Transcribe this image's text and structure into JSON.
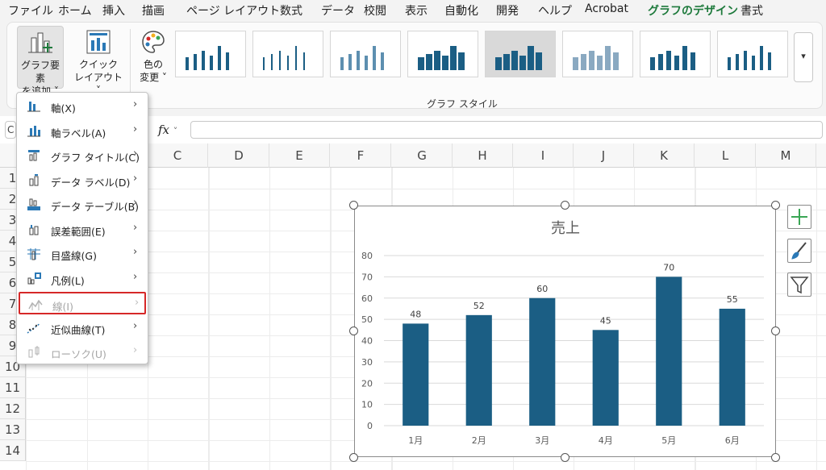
{
  "ribbon_tabs": [
    {
      "label": "ファイル",
      "active": false
    },
    {
      "label": "ホーム",
      "active": false
    },
    {
      "label": "挿入",
      "active": false
    },
    {
      "label": "描画",
      "active": false
    },
    {
      "label": "ページ レイアウト",
      "active": false
    },
    {
      "label": "数式",
      "active": false
    },
    {
      "label": "データ",
      "active": false
    },
    {
      "label": "校閲",
      "active": false
    },
    {
      "label": "表示",
      "active": false
    },
    {
      "label": "自動化",
      "active": false
    },
    {
      "label": "開発",
      "active": false
    },
    {
      "label": "ヘルプ",
      "active": false
    },
    {
      "label": "Acrobat",
      "active": false
    },
    {
      "label": "グラフのデザイン",
      "active": true
    },
    {
      "label": "書式",
      "active": false
    }
  ],
  "ribbon": {
    "add_element_line1": "グラフ要素",
    "add_element_line2": "を追加 ˅",
    "quick_layout_line1": "クイック",
    "quick_layout_line2": "レイアウト ˅",
    "color_change_line1": "色の",
    "color_change_line2": "変更 ˅",
    "styles_group_label": "グラフ スタイル",
    "more_glyph": "▾"
  },
  "formula_bar": {
    "name_box_fragment": "C",
    "fx_label": "fx",
    "fx_chevron": "˅",
    "value": ""
  },
  "sheet": {
    "columns": [
      "C",
      "D",
      "E",
      "F",
      "G",
      "H",
      "I",
      "J",
      "K",
      "L",
      "M"
    ],
    "rows": [
      "1",
      "2",
      "3",
      "4",
      "5",
      "6",
      "7",
      "8",
      "9",
      "10",
      "11",
      "12",
      "13",
      "14"
    ]
  },
  "menu": {
    "items": [
      {
        "label": "軸(X)",
        "icon": "axes-icon",
        "enabled": true,
        "highlighted": false
      },
      {
        "label": "軸ラベル(A)",
        "icon": "axis-titles-icon",
        "enabled": true,
        "highlighted": false
      },
      {
        "label": "グラフ タイトル(C)",
        "icon": "chart-title-icon",
        "enabled": true,
        "highlighted": false
      },
      {
        "label": "データ ラベル(D)",
        "icon": "data-labels-icon",
        "enabled": true,
        "highlighted": false
      },
      {
        "label": "データ テーブル(B)",
        "icon": "data-table-icon",
        "enabled": true,
        "highlighted": false
      },
      {
        "label": "誤差範囲(E)",
        "icon": "error-bars-icon",
        "enabled": true,
        "highlighted": false
      },
      {
        "label": "目盛線(G)",
        "icon": "gridlines-icon",
        "enabled": true,
        "highlighted": false
      },
      {
        "label": "凡例(L)",
        "icon": "legend-icon",
        "enabled": true,
        "highlighted": false
      },
      {
        "label": "線(I)",
        "icon": "lines-icon",
        "enabled": false,
        "highlighted": true
      },
      {
        "label": "近似曲線(T)",
        "icon": "trendline-icon",
        "enabled": true,
        "highlighted": false
      },
      {
        "label": "ローソク(U)",
        "icon": "up-down-bars-icon",
        "enabled": false,
        "highlighted": false
      }
    ],
    "arrow_glyph": "›"
  },
  "colors": {
    "accent_green": "#1e7a3c",
    "bar_color": "#1b5e84",
    "highlight_red": "#d62828",
    "side_plus_green": "#3aa655"
  },
  "chart_data": {
    "type": "bar",
    "title": "売上",
    "categories": [
      "1月",
      "2月",
      "3月",
      "4月",
      "5月",
      "6月"
    ],
    "values": [
      48,
      52,
      60,
      45,
      70,
      55
    ],
    "data_labels": [
      "48",
      "52",
      "60",
      "45",
      "70",
      "55"
    ],
    "yticks": [
      "0",
      "10",
      "20",
      "30",
      "40",
      "50",
      "60",
      "70",
      "80"
    ],
    "ylim": [
      0,
      80
    ],
    "grid": true,
    "legend": "none",
    "xlabel": "",
    "ylabel": ""
  }
}
